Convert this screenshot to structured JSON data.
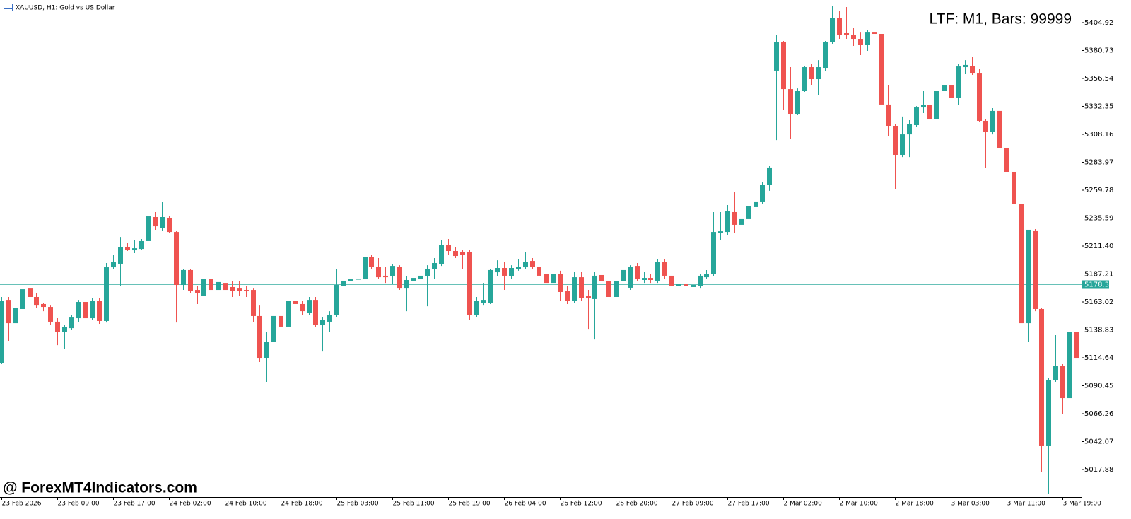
{
  "chart_data": {
    "type": "candlestick",
    "title": "XAUUSD, H1: Gold vs US Dollar",
    "annotation": "LTF: M1, Bars: 99999",
    "watermark": "@ ForexMT4Indicators.com",
    "up_color": "#26a69a",
    "down_color": "#ef5350",
    "price_line_color": "#26a69a",
    "current_price": 5178.35,
    "ylim": [
      4994.0,
      5424.5
    ],
    "yticks": [
      5404.92,
      5380.73,
      5356.54,
      5332.35,
      5308.16,
      5283.97,
      5259.78,
      5235.59,
      {
        "value": 5211.4,
        "label": "5211.40"
      },
      5187.21,
      5163.02,
      5138.83,
      5114.64,
      5090.45,
      5066.26,
      5042.07,
      5017.88
    ],
    "categories": [
      "23 Feb 2026",
      null,
      null,
      null,
      null,
      null,
      null,
      null,
      "23 Feb 09:00",
      null,
      null,
      null,
      null,
      null,
      null,
      null,
      "23 Feb 17:00",
      null,
      null,
      null,
      null,
      null,
      null,
      null,
      "24 Feb 02:00",
      null,
      null,
      null,
      null,
      null,
      null,
      null,
      "24 Feb 10:00",
      null,
      null,
      null,
      null,
      null,
      null,
      null,
      "24 Feb 18:00",
      null,
      null,
      null,
      null,
      null,
      null,
      null,
      "25 Feb 03:00",
      null,
      null,
      null,
      null,
      null,
      null,
      null,
      "25 Feb 11:00",
      null,
      null,
      null,
      null,
      null,
      null,
      null,
      "25 Feb 19:00",
      null,
      null,
      null,
      null,
      null,
      null,
      null,
      "26 Feb 04:00",
      null,
      null,
      null,
      null,
      null,
      null,
      null,
      "26 Feb 12:00",
      null,
      null,
      null,
      null,
      null,
      null,
      null,
      "26 Feb 20:00",
      null,
      null,
      null,
      null,
      null,
      null,
      null,
      "27 Feb 09:00",
      null,
      null,
      null,
      null,
      null,
      null,
      null,
      "27 Feb 17:00",
      null,
      null,
      null,
      null,
      null,
      null,
      null,
      "2 Mar 02:00",
      null,
      null,
      null,
      null,
      null,
      null,
      null,
      "2 Mar 10:00",
      null,
      null,
      null,
      null,
      null,
      null,
      null,
      "2 Mar 18:00",
      null,
      null,
      null,
      null,
      null,
      null,
      null,
      "3 Mar 03:00",
      null,
      null,
      null,
      null,
      null,
      null,
      null,
      "3 Mar 11:00",
      null,
      null,
      null,
      null,
      null,
      null,
      null,
      "3 Mar 19:00",
      null,
      null
    ],
    "ohlc": [
      [
        5110.3,
        5167.3,
        5109.1,
        5164.2
      ],
      [
        5164.8,
        5167.3,
        5129.3,
        5144.6
      ],
      [
        5144.6,
        5167.3,
        5142.8,
        5158.1
      ],
      [
        5156.9,
        5177.7,
        5155.0,
        5174.0
      ],
      [
        5174.6,
        5176.5,
        5164.2,
        5167.3
      ],
      [
        5167.3,
        5170.4,
        5157.5,
        5159.9
      ],
      [
        5161.2,
        5162.4,
        5155.0,
        5158.7
      ],
      [
        5158.7,
        5159.9,
        5142.8,
        5145.9
      ],
      [
        5145.9,
        5148.9,
        5125.6,
        5136.7
      ],
      [
        5137.3,
        5142.8,
        5122.6,
        5141.0
      ],
      [
        5140.3,
        5151.4,
        5139.1,
        5149.5
      ],
      [
        5148.9,
        5164.8,
        5145.9,
        5163.0
      ],
      [
        5163.0,
        5164.8,
        5147.1,
        5148.9
      ],
      [
        5148.9,
        5166.1,
        5147.1,
        5164.2
      ],
      [
        5164.2,
        5166.7,
        5144.0,
        5146.5
      ],
      [
        5146.5,
        5196.7,
        5145.2,
        5193.0
      ],
      [
        5193.0,
        5204.0,
        5191.8,
        5197.3
      ],
      [
        5196.1,
        5219.3,
        5176.5,
        5210.2
      ],
      [
        5210.2,
        5214.4,
        5207.1,
        5208.3
      ],
      [
        5207.7,
        5216.3,
        5205.3,
        5209.5
      ],
      [
        5208.9,
        5217.5,
        5207.7,
        5215.7
      ],
      [
        5215.7,
        5238.3,
        5214.4,
        5237.1
      ],
      [
        5236.5,
        5240.8,
        5225.5,
        5228.5
      ],
      [
        5227.3,
        5250.0,
        5224.9,
        5236.5
      ],
      [
        5235.9,
        5237.7,
        5222.4,
        5223.6
      ],
      [
        5223.6,
        5224.9,
        5145.2,
        5177.7
      ],
      [
        5177.7,
        5191.8,
        5173.4,
        5190.6
      ],
      [
        5190.6,
        5191.8,
        5170.4,
        5172.2
      ],
      [
        5173.4,
        5176.5,
        5161.2,
        5170.4
      ],
      [
        5168.5,
        5186.9,
        5166.1,
        5182.6
      ],
      [
        5182.6,
        5184.4,
        5156.9,
        5173.4
      ],
      [
        5173.4,
        5182.6,
        5170.4,
        5180.2
      ],
      [
        5179.5,
        5182.0,
        5167.3,
        5173.4
      ],
      [
        5175.9,
        5180.8,
        5167.3,
        5172.8
      ],
      [
        5174.6,
        5181.4,
        5168.5,
        5172.8
      ],
      [
        5173.4,
        5176.5,
        5167.3,
        5172.2
      ],
      [
        5173.4,
        5174.6,
        5145.9,
        5150.8
      ],
      [
        5150.8,
        5159.9,
        5111.0,
        5114.0
      ],
      [
        5114.6,
        5136.7,
        5093.8,
        5128.7
      ],
      [
        5128.7,
        5158.1,
        5118.3,
        5150.8
      ],
      [
        5150.8,
        5155.0,
        5133.6,
        5141.6
      ],
      [
        5141.6,
        5167.3,
        5139.7,
        5164.2
      ],
      [
        5164.2,
        5167.3,
        5156.9,
        5161.2
      ],
      [
        5161.2,
        5164.2,
        5152.0,
        5155.0
      ],
      [
        5153.8,
        5167.3,
        5152.0,
        5164.8
      ],
      [
        5164.8,
        5167.3,
        5141.0,
        5143.4
      ],
      [
        5142.8,
        5150.1,
        5120.1,
        5147.1
      ],
      [
        5145.9,
        5155.0,
        5136.7,
        5152.0
      ],
      [
        5152.0,
        5191.8,
        5150.1,
        5177.7
      ],
      [
        5177.1,
        5193.0,
        5173.4,
        5181.4
      ],
      [
        5180.8,
        5190.6,
        5176.5,
        5182.6
      ],
      [
        5182.6,
        5188.7,
        5173.4,
        5183.2
      ],
      [
        5182.6,
        5210.2,
        5181.4,
        5202.2
      ],
      [
        5202.2,
        5204.0,
        5191.8,
        5193.6
      ],
      [
        5193.6,
        5201.0,
        5182.6,
        5184.4
      ],
      [
        5185.7,
        5193.0,
        5179.5,
        5184.4
      ],
      [
        5185.1,
        5195.5,
        5178.3,
        5194.2
      ],
      [
        5193.6,
        5194.8,
        5173.4,
        5174.6
      ],
      [
        5174.6,
        5185.7,
        5155.0,
        5182.0
      ],
      [
        5181.4,
        5188.7,
        5179.5,
        5183.8
      ],
      [
        5182.6,
        5190.6,
        5179.5,
        5185.7
      ],
      [
        5185.1,
        5194.8,
        5159.3,
        5191.8
      ],
      [
        5191.8,
        5201.0,
        5182.6,
        5196.7
      ],
      [
        5195.5,
        5216.3,
        5194.2,
        5212.6
      ],
      [
        5212.0,
        5217.5,
        5204.0,
        5207.1
      ],
      [
        5207.1,
        5210.2,
        5201.0,
        5202.8
      ],
      [
        5206.5,
        5207.7,
        5191.8,
        5204.0
      ],
      [
        5206.5,
        5207.7,
        5147.1,
        5152.0
      ],
      [
        5152.0,
        5167.3,
        5150.1,
        5164.2
      ],
      [
        5162.4,
        5179.5,
        5159.9,
        5164.8
      ],
      [
        5162.4,
        5191.8,
        5161.2,
        5190.6
      ],
      [
        5188.7,
        5199.1,
        5185.7,
        5192.4
      ],
      [
        5192.4,
        5197.9,
        5173.4,
        5185.7
      ],
      [
        5185.1,
        5194.8,
        5182.6,
        5192.4
      ],
      [
        5191.8,
        5200.4,
        5190.0,
        5193.6
      ],
      [
        5193.0,
        5206.5,
        5191.8,
        5197.9
      ],
      [
        5198.5,
        5201.0,
        5191.8,
        5193.6
      ],
      [
        5193.6,
        5196.7,
        5182.6,
        5185.7
      ],
      [
        5186.9,
        5190.6,
        5176.5,
        5179.5
      ],
      [
        5179.5,
        5188.7,
        5170.4,
        5186.9
      ],
      [
        5186.9,
        5190.0,
        5164.2,
        5171.6
      ],
      [
        5172.2,
        5176.5,
        5161.2,
        5164.2
      ],
      [
        5164.2,
        5188.7,
        5162.4,
        5184.4
      ],
      [
        5184.4,
        5188.7,
        5164.2,
        5166.1
      ],
      [
        5167.9,
        5173.4,
        5139.7,
        5166.1
      ],
      [
        5165.5,
        5188.7,
        5130.5,
        5185.7
      ],
      [
        5186.3,
        5190.6,
        5176.5,
        5180.8
      ],
      [
        5180.8,
        5188.7,
        5164.2,
        5167.3
      ],
      [
        5167.3,
        5182.6,
        5161.2,
        5180.8
      ],
      [
        5180.8,
        5193.0,
        5179.5,
        5190.6
      ],
      [
        5175.3,
        5194.8,
        5173.4,
        5193.6
      ],
      [
        5194.2,
        5196.7,
        5180.8,
        5182.6
      ],
      [
        5182.0,
        5188.7,
        5179.5,
        5183.8
      ],
      [
        5183.8,
        5186.9,
        5179.5,
        5182.0
      ],
      [
        5181.4,
        5200.4,
        5179.5,
        5197.9
      ],
      [
        5197.9,
        5200.4,
        5182.6,
        5185.7
      ],
      [
        5185.7,
        5186.9,
        5173.4,
        5176.5
      ],
      [
        5176.5,
        5182.6,
        5173.4,
        5178.3
      ],
      [
        5178.3,
        5180.8,
        5173.4,
        5176.5
      ],
      [
        5175.9,
        5180.8,
        5170.4,
        5177.7
      ],
      [
        5177.1,
        5186.9,
        5174.6,
        5185.7
      ],
      [
        5184.4,
        5190.6,
        5182.6,
        5186.9
      ],
      [
        5186.9,
        5240.8,
        5185.7,
        5223.6
      ],
      [
        5223.0,
        5240.8,
        5216.3,
        5224.2
      ],
      [
        5223.6,
        5246.9,
        5221.2,
        5242.0
      ],
      [
        5240.8,
        5257.9,
        5222.4,
        5229.8
      ],
      [
        5229.8,
        5243.8,
        5222.4,
        5234.7
      ],
      [
        5234.7,
        5248.1,
        5231.6,
        5245.7
      ],
      [
        5245.1,
        5253.0,
        5240.8,
        5250.0
      ],
      [
        5250.0,
        5266.5,
        5248.1,
        5264.1
      ],
      [
        5264.1,
        5280.6,
        5259.2,
        5279.4
      ],
      [
        5363.3,
        5393.9,
        5303.2,
        5387.8
      ],
      [
        5387.8,
        5389.0,
        5329.6,
        5347.3
      ],
      [
        5347.3,
        5366.3,
        5303.9,
        5325.9
      ],
      [
        5325.9,
        5347.9,
        5324.7,
        5346.1
      ],
      [
        5346.1,
        5367.5,
        5344.9,
        5366.3
      ],
      [
        5366.3,
        5369.4,
        5351.0,
        5355.9
      ],
      [
        5355.9,
        5372.4,
        5341.8,
        5366.3
      ],
      [
        5365.7,
        5389.0,
        5363.3,
        5387.8
      ],
      [
        5387.8,
        5419.6,
        5386.5,
        5408.6
      ],
      [
        5408.6,
        5415.3,
        5390.8,
        5393.9
      ],
      [
        5396.3,
        5418.4,
        5390.8,
        5393.9
      ],
      [
        5393.9,
        5400.0,
        5384.7,
        5390.8
      ],
      [
        5390.8,
        5396.9,
        5376.7,
        5385.9
      ],
      [
        5385.9,
        5398.8,
        5380.4,
        5396.9
      ],
      [
        5396.9,
        5417.2,
        5390.8,
        5395.1
      ],
      [
        5395.1,
        5396.9,
        5308.1,
        5333.9
      ],
      [
        5333.9,
        5351.0,
        5306.9,
        5315.5
      ],
      [
        5315.5,
        5317.3,
        5261.0,
        5290.4
      ],
      [
        5290.4,
        5323.5,
        5288.5,
        5308.1
      ],
      [
        5308.1,
        5320.4,
        5288.5,
        5317.3
      ],
      [
        5316.1,
        5332.6,
        5314.3,
        5331.4
      ],
      [
        5331.4,
        5346.1,
        5326.5,
        5333.3
      ],
      [
        5333.3,
        5335.7,
        5319.2,
        5321.0
      ],
      [
        5321.0,
        5347.9,
        5320.4,
        5346.1
      ],
      [
        5346.1,
        5363.3,
        5343.7,
        5351.0
      ],
      [
        5351.0,
        5380.4,
        5338.8,
        5340.0
      ],
      [
        5340.0,
        5369.4,
        5333.9,
        5366.9
      ],
      [
        5366.3,
        5372.4,
        5360.2,
        5368.2
      ],
      [
        5367.5,
        5375.5,
        5359.6,
        5361.4
      ],
      [
        5361.4,
        5364.5,
        5318.6,
        5319.8
      ],
      [
        5319.8,
        5321.6,
        5279.4,
        5310.6
      ],
      [
        5310.6,
        5330.8,
        5308.1,
        5328.4
      ],
      [
        5328.4,
        5335.7,
        5292.8,
        5295.9
      ],
      [
        5295.9,
        5299.0,
        5226.7,
        5275.7
      ],
      [
        5275.7,
        5286.7,
        5246.9,
        5248.1
      ],
      [
        5248.1,
        5253.0,
        5075.4,
        5144.6
      ],
      [
        5144.6,
        5225.5,
        5128.7,
        5225.5
      ],
      [
        5224.9,
        5226.1,
        5155.0,
        5156.9
      ],
      [
        5156.9,
        5158.1,
        5016.0,
        5038.1
      ],
      [
        5038.1,
        5096.9,
        4997.0,
        5095.6
      ],
      [
        5095.6,
        5134.2,
        5093.8,
        5107.3
      ],
      [
        5107.3,
        5109.1,
        5066.2,
        5079.7
      ],
      [
        5079.7,
        5137.9,
        5078.5,
        5136.7
      ],
      [
        5136.7,
        5148.9,
        5099.9,
        5114.0
      ]
    ]
  }
}
